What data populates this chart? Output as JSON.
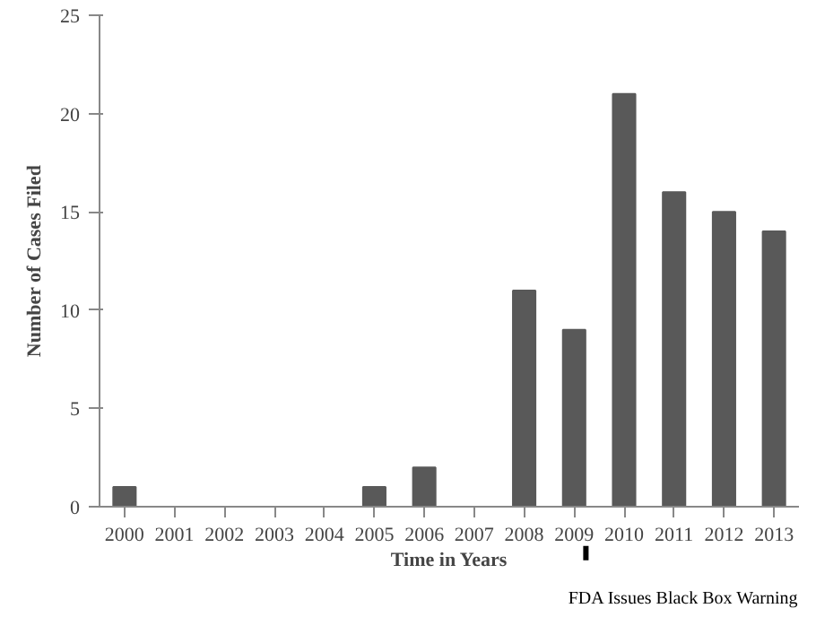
{
  "chart_data": {
    "type": "bar",
    "xlabel": "Time in Years",
    "ylabel": "Number of Cases Filed",
    "categories": [
      "2000",
      "2001",
      "2002",
      "2003",
      "2004",
      "2005",
      "2006",
      "2007",
      "2008",
      "2009",
      "2010",
      "2011",
      "2012",
      "2013"
    ],
    "values": [
      1,
      0,
      0,
      0,
      0,
      1,
      2,
      0,
      11,
      9,
      21,
      16,
      15,
      14
    ],
    "color": "#595959",
    "ylim": [
      0,
      25
    ],
    "yticks": [
      0,
      5,
      10,
      15,
      20,
      25
    ],
    "grid": false,
    "annotations": [
      "FDA Issues Black Box Warning"
    ]
  }
}
